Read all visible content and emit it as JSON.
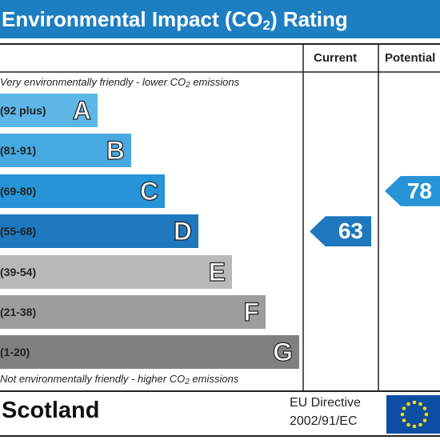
{
  "header": {
    "title_main": "Environmental Impact (CO",
    "title_sub": "2",
    "title_end": ") Rating"
  },
  "columns": {
    "current": "Current",
    "potential": "Potential"
  },
  "captions": {
    "top_pre": "Very environmentally friendly - lower CO",
    "top_sub": "2",
    "top_post": " emissions",
    "bottom_pre": "Not environmentally friendly - higher CO",
    "bottom_sub": "2",
    "bottom_post": " emissions"
  },
  "footer": {
    "country": "Scotland",
    "eu_line1": "EU Directive",
    "eu_line2": "2002/91/EC",
    "flag": "eu-flag-icon"
  },
  "chart_data": {
    "type": "bar",
    "title": "Environmental Impact (CO2) Rating",
    "categories": [
      "A",
      "B",
      "C",
      "D",
      "E",
      "F",
      "G"
    ],
    "bands": [
      {
        "letter": "A",
        "range": "(92 plus)",
        "min": 92,
        "max": 100,
        "color": "#5eb6e6"
      },
      {
        "letter": "B",
        "range": "(81-91)",
        "min": 81,
        "max": 91,
        "color": "#47a9e0"
      },
      {
        "letter": "C",
        "range": "(69-80)",
        "min": 69,
        "max": 80,
        "color": "#2794d7"
      },
      {
        "letter": "D",
        "range": "(55-68)",
        "min": 55,
        "max": 68,
        "color": "#1f77be"
      },
      {
        "letter": "E",
        "range": "(39-54)",
        "min": 39,
        "max": 54,
        "color": "#b9b9b9"
      },
      {
        "letter": "F",
        "range": "(21-38)",
        "min": 21,
        "max": 38,
        "color": "#9d9d9d"
      },
      {
        "letter": "G",
        "range": "(1-20)",
        "min": 1,
        "max": 20,
        "color": "#808080"
      }
    ],
    "ratings": [
      {
        "name": "Current",
        "value": 63,
        "color": "#1f77be"
      },
      {
        "name": "Potential",
        "value": 78,
        "color": "#2794d7"
      }
    ]
  }
}
